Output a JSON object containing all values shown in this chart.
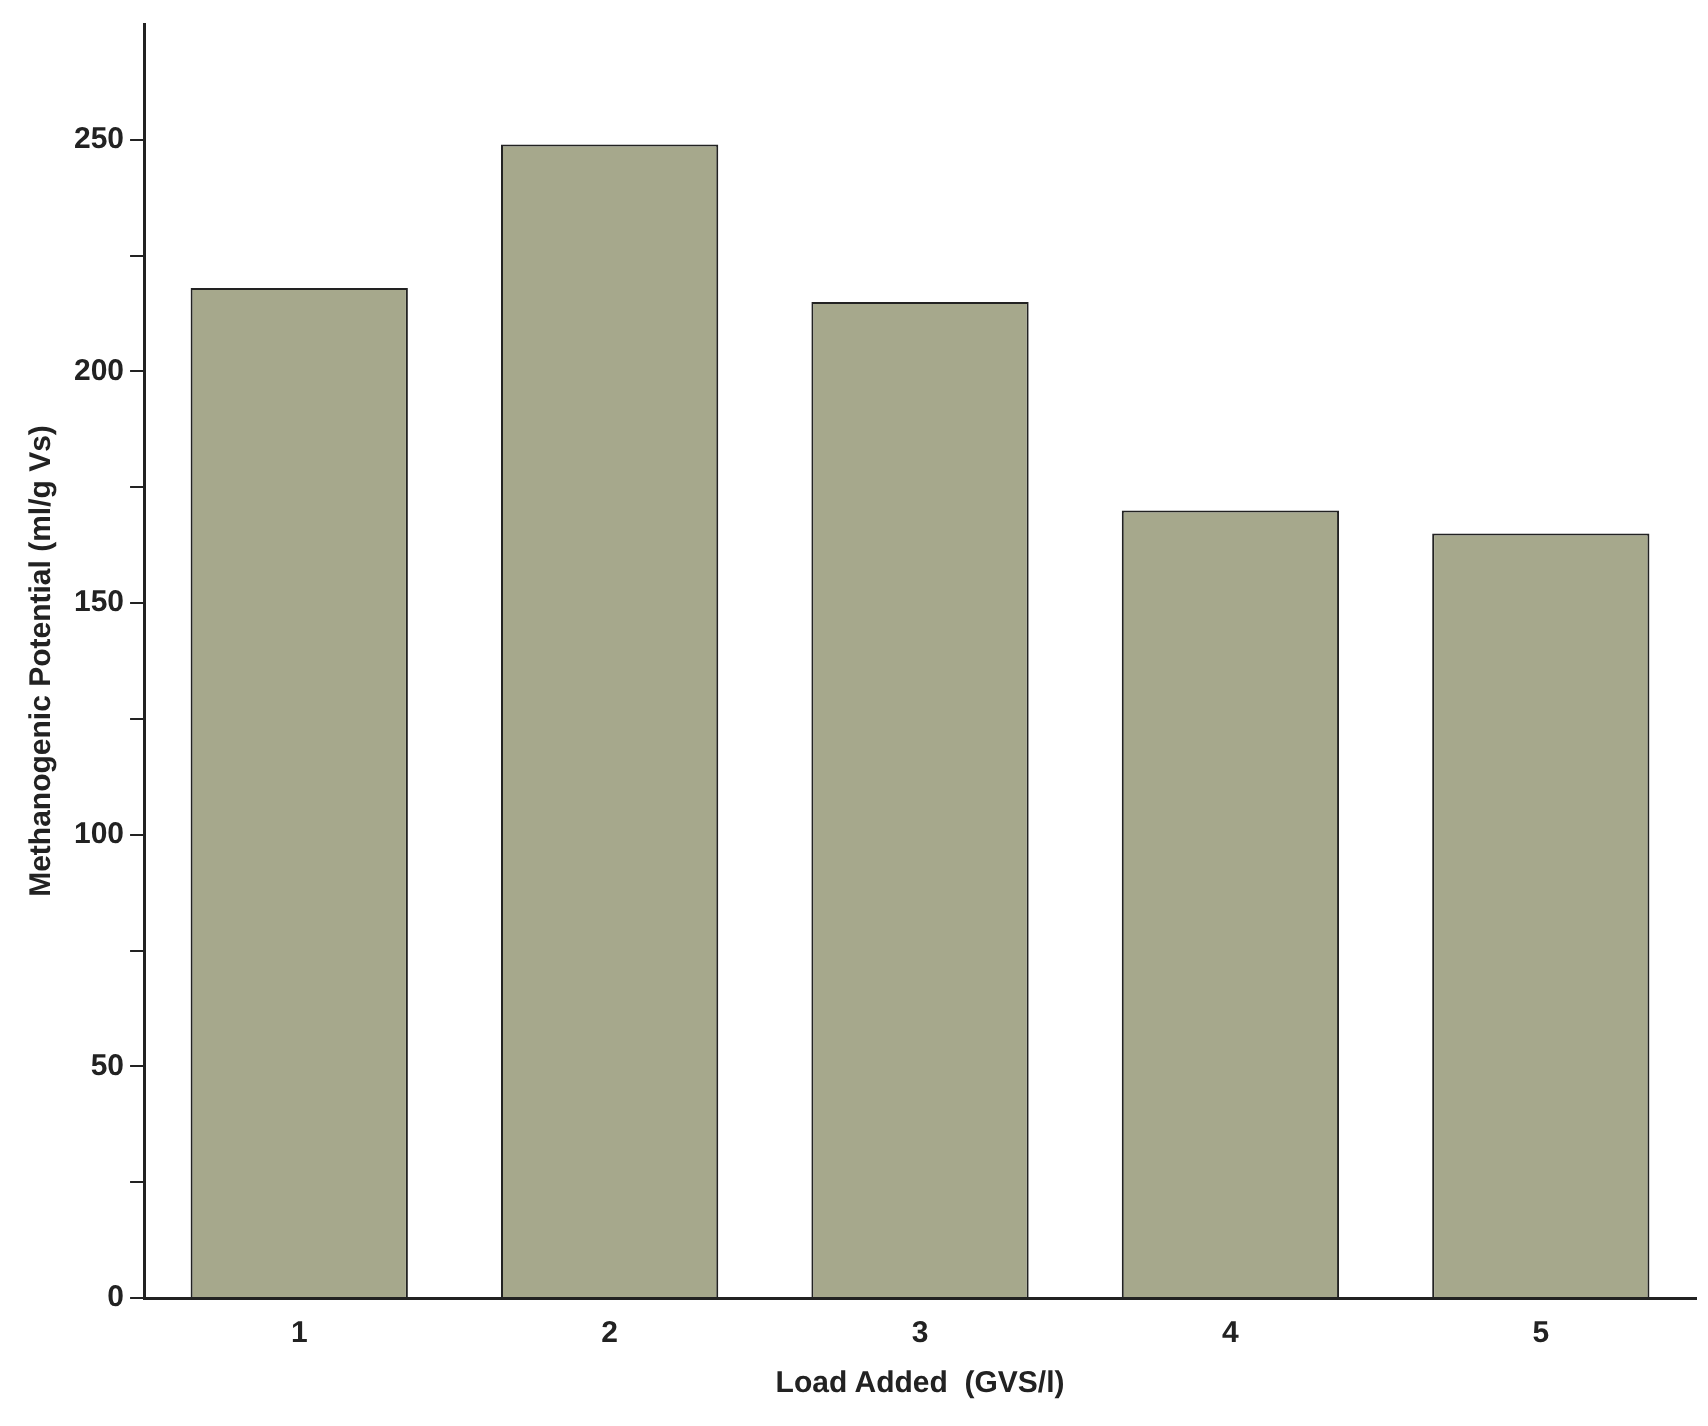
{
  "chart_data": {
    "type": "bar",
    "xlabel": "Load Added  (GVS/l)",
    "ylabel": "Methanogenic Potential (ml/g Vs)",
    "categories": [
      "1",
      "2",
      "3",
      "4",
      "5"
    ],
    "series": [
      {
        "color": "#a6a88c",
        "values": [
          218,
          249,
          215,
          170,
          165
        ]
      }
    ],
    "ylim": [
      0,
      275
    ],
    "yticks": [
      0,
      {
        "value": 25,
        "label": null
      },
      50,
      {
        "value": 75,
        "label": null
      },
      100,
      {
        "value": 125,
        "label": null
      },
      150,
      {
        "value": 175,
        "label": null
      },
      200,
      {
        "value": 225,
        "label": null
      },
      250
    ],
    "grid": false,
    "legend": false
  }
}
